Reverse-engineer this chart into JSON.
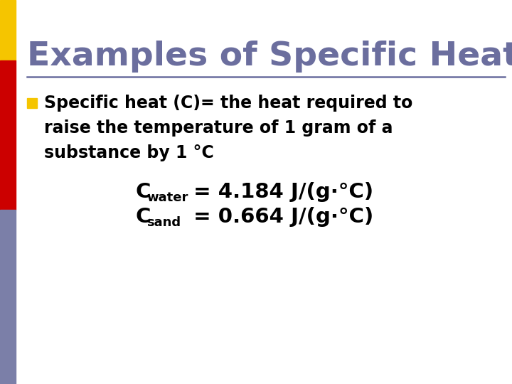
{
  "title": "Examples of Specific Heat",
  "title_color": "#6B6E9E",
  "title_fontsize": 34,
  "bg_color": "#FFFFFF",
  "left_bar_colors": [
    "#F5C500",
    "#CC0000",
    "#7B7FA8"
  ],
  "separator_color": "#6B6E9E",
  "bullet_color": "#F5C500",
  "body_text_color": "#000000",
  "body_fontsize": 17,
  "body_line1": "Specific heat (C)= the heat required to",
  "body_line2": "raise the temperature of 1 gram of a",
  "body_line3": "substance by 1 °C",
  "eq_fontsize": 21,
  "eq_color": "#000000",
  "eq_sub_fontsize": 13
}
